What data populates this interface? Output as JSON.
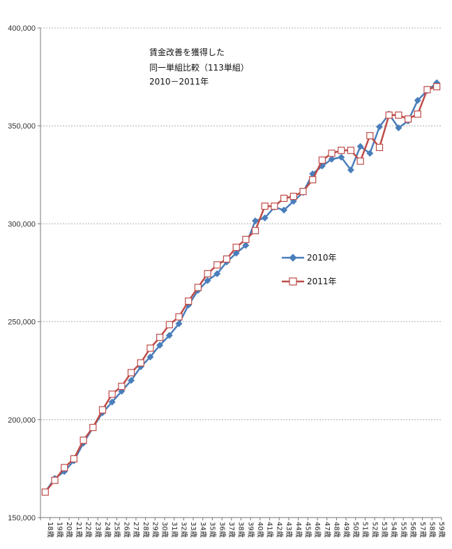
{
  "chart_data": {
    "type": "line",
    "title": "",
    "xlabel": "",
    "ylabel": "",
    "annotation": [
      "賃金改善を獲得した",
      "同一単組比較（113単組）",
      "2010－2011年"
    ],
    "categories": [
      "18歳",
      "19歳",
      "20歳",
      "21歳",
      "22歳",
      "23歳",
      "24歳",
      "25歳",
      "26歳",
      "27歳",
      "28歳",
      "29歳",
      "30歳",
      "31歳",
      "32歳",
      "33歳",
      "34歳",
      "35歳",
      "36歳",
      "37歳",
      "38歳",
      "39歳",
      "40歳",
      "41歳",
      "42歳",
      "43歳",
      "44歳",
      "45歳",
      "46歳",
      "47歳",
      "48歳",
      "49歳",
      "50歳",
      "51歳",
      "52歳",
      "53歳",
      "54歳",
      "55歳",
      "56歳",
      "57歳",
      "58歳",
      "59歳"
    ],
    "y_ticks": [
      "150,000",
      "200,000",
      "250,000",
      "300,000",
      "350,000",
      "400,000"
    ],
    "ylim": [
      150000,
      400000
    ],
    "grid": true,
    "legend_position": "center-right",
    "series": [
      {
        "name": "2010年",
        "color": "#4A7EBB",
        "marker": "diamond",
        "values": [
          163000,
          170000,
          173500,
          179000,
          188000,
          196000,
          203500,
          209000,
          214500,
          220000,
          227000,
          232000,
          238000,
          243000,
          249000,
          258500,
          266000,
          271000,
          274500,
          280500,
          285000,
          289000,
          301500,
          303000,
          308500,
          307000,
          311500,
          316000,
          325500,
          329500,
          333000,
          334000,
          327500,
          339500,
          336000,
          349500,
          356000,
          349000,
          352500,
          363000,
          368000,
          372000
        ]
      },
      {
        "name": "2011年",
        "color": "#BE4B48",
        "marker": "square",
        "values": [
          163000,
          169000,
          175500,
          180000,
          189500,
          196000,
          205000,
          213000,
          217000,
          224000,
          229000,
          236500,
          242000,
          248500,
          252500,
          260500,
          267500,
          274500,
          279000,
          282000,
          288000,
          292000,
          296500,
          309000,
          309000,
          313000,
          314000,
          316500,
          322500,
          332500,
          336000,
          337500,
          337500,
          332000,
          345000,
          339000,
          355500,
          355500,
          353500,
          356000,
          368500,
          370000
        ]
      }
    ]
  }
}
